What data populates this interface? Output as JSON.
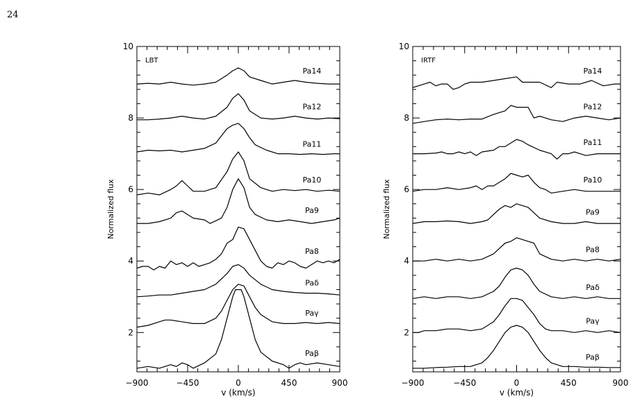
{
  "page": {
    "number": "24"
  },
  "chart_data": [
    {
      "type": "line",
      "panel_label": "LBT",
      "xlabel": "v (km/s)",
      "ylabel": "Normalized flux",
      "xlim": [
        -900,
        900
      ],
      "ylim": [
        0.9,
        10
      ],
      "xticks": [
        -900,
        -450,
        0,
        450,
        900
      ],
      "xtick_labels": [
        "−900",
        "−450",
        "0",
        "450",
        "900"
      ],
      "yticks": [
        2,
        4,
        6,
        8,
        10
      ],
      "ytick_labels": [
        "2",
        "4",
        "6",
        "8",
        "10"
      ],
      "grid": false,
      "series": [
        {
          "name": "Pa14",
          "x": [
            -900,
            -800,
            -700,
            -600,
            -500,
            -400,
            -300,
            -200,
            -100,
            -50,
            0,
            50,
            100,
            200,
            300,
            400,
            500,
            600,
            700,
            800,
            900
          ],
          "y": [
            8.95,
            8.97,
            8.95,
            9.0,
            8.95,
            8.92,
            8.95,
            9.0,
            9.2,
            9.32,
            9.4,
            9.32,
            9.15,
            9.05,
            8.95,
            9.0,
            9.05,
            9.0,
            8.97,
            8.95,
            8.95
          ]
        },
        {
          "name": "Pa12",
          "x": [
            -900,
            -800,
            -700,
            -600,
            -500,
            -400,
            -300,
            -200,
            -100,
            -50,
            0,
            50,
            100,
            200,
            300,
            400,
            500,
            600,
            700,
            800,
            900
          ],
          "y": [
            7.95,
            7.95,
            7.97,
            8.0,
            8.05,
            8.0,
            7.97,
            8.05,
            8.3,
            8.55,
            8.68,
            8.5,
            8.2,
            8.0,
            7.97,
            8.0,
            8.05,
            8.0,
            7.97,
            8.0,
            7.98
          ]
        },
        {
          "name": "Pa11",
          "x": [
            -900,
            -800,
            -700,
            -600,
            -500,
            -400,
            -300,
            -200,
            -150,
            -100,
            -50,
            0,
            50,
            100,
            150,
            250,
            350,
            450,
            550,
            650,
            750,
            850,
            900
          ],
          "y": [
            7.05,
            7.1,
            7.08,
            7.1,
            7.05,
            7.1,
            7.15,
            7.3,
            7.5,
            7.7,
            7.8,
            7.85,
            7.7,
            7.45,
            7.25,
            7.1,
            7.0,
            7.0,
            6.98,
            7.0,
            6.98,
            7.0,
            7.0
          ]
        },
        {
          "name": "Pa10",
          "x": [
            -900,
            -800,
            -700,
            -600,
            -550,
            -500,
            -450,
            -400,
            -300,
            -200,
            -100,
            -50,
            0,
            50,
            100,
            200,
            300,
            400,
            500,
            600,
            700,
            800,
            900
          ],
          "y": [
            5.85,
            5.9,
            5.85,
            6.0,
            6.1,
            6.25,
            6.1,
            5.95,
            5.95,
            6.05,
            6.5,
            6.85,
            7.05,
            6.8,
            6.3,
            6.05,
            5.95,
            6.0,
            5.97,
            6.0,
            5.95,
            5.98,
            5.95
          ]
        },
        {
          "name": "Pa9",
          "x": [
            -900,
            -800,
            -700,
            -600,
            -550,
            -500,
            -450,
            -400,
            -300,
            -250,
            -150,
            -100,
            -50,
            0,
            50,
            100,
            150,
            250,
            350,
            450,
            550,
            650,
            750,
            850,
            900
          ],
          "y": [
            5.05,
            5.05,
            5.1,
            5.2,
            5.35,
            5.4,
            5.3,
            5.2,
            5.15,
            5.05,
            5.2,
            5.5,
            6.0,
            6.3,
            6.05,
            5.5,
            5.3,
            5.15,
            5.1,
            5.15,
            5.1,
            5.05,
            5.1,
            5.15,
            5.2
          ]
        },
        {
          "name": "Pa8",
          "x": [
            -900,
            -850,
            -800,
            -750,
            -700,
            -650,
            -600,
            -550,
            -500,
            -450,
            -400,
            -350,
            -300,
            -250,
            -200,
            -150,
            -100,
            -50,
            0,
            50,
            100,
            150,
            200,
            250,
            300,
            350,
            400,
            450,
            500,
            550,
            600,
            650,
            700,
            750,
            800,
            850,
            900
          ],
          "y": [
            3.8,
            3.85,
            3.85,
            3.75,
            3.85,
            3.8,
            4.0,
            3.9,
            3.95,
            3.85,
            3.95,
            3.85,
            3.9,
            3.95,
            4.05,
            4.2,
            4.5,
            4.6,
            4.95,
            4.9,
            4.6,
            4.3,
            4.0,
            3.85,
            3.8,
            3.95,
            3.9,
            4.0,
            3.95,
            3.85,
            3.8,
            3.9,
            4.0,
            3.95,
            4.0,
            3.95,
            4.05
          ]
        },
        {
          "name": "Paδ",
          "x": [
            -900,
            -800,
            -700,
            -600,
            -500,
            -400,
            -300,
            -200,
            -100,
            -50,
            0,
            50,
            100,
            200,
            300,
            400,
            500,
            600,
            700,
            800,
            900
          ],
          "y": [
            3.0,
            3.02,
            3.05,
            3.05,
            3.1,
            3.15,
            3.2,
            3.35,
            3.65,
            3.85,
            3.9,
            3.8,
            3.6,
            3.35,
            3.2,
            3.15,
            3.12,
            3.1,
            3.1,
            3.08,
            3.05
          ]
        },
        {
          "name": "Paγ",
          "x": [
            -900,
            -800,
            -700,
            -650,
            -600,
            -500,
            -400,
            -300,
            -200,
            -150,
            -100,
            -50,
            0,
            50,
            100,
            150,
            200,
            300,
            400,
            500,
            600,
            700,
            800,
            900
          ],
          "y": [
            2.15,
            2.2,
            2.3,
            2.35,
            2.35,
            2.3,
            2.25,
            2.25,
            2.4,
            2.6,
            2.9,
            3.2,
            3.35,
            3.3,
            3.0,
            2.7,
            2.5,
            2.3,
            2.25,
            2.25,
            2.28,
            2.25,
            2.28,
            2.25
          ]
        },
        {
          "name": "Paβ",
          "x": [
            -900,
            -800,
            -700,
            -600,
            -550,
            -500,
            -450,
            -400,
            -300,
            -200,
            -150,
            -100,
            -50,
            -25,
            25,
            50,
            100,
            150,
            200,
            300,
            400,
            450,
            500,
            550,
            600,
            700,
            800,
            900
          ],
          "y": [
            1.0,
            1.05,
            1.0,
            1.1,
            1.05,
            1.15,
            1.1,
            1.0,
            1.15,
            1.4,
            1.8,
            2.4,
            3.0,
            3.2,
            3.2,
            3.0,
            2.4,
            1.8,
            1.45,
            1.2,
            1.1,
            1.0,
            1.1,
            1.15,
            1.1,
            1.15,
            1.1,
            1.05
          ]
        }
      ]
    },
    {
      "type": "line",
      "panel_label": "IRTF",
      "xlabel": "v (km/s)",
      "ylabel": "Normalized flux",
      "xlim": [
        -900,
        900
      ],
      "ylim": [
        0.9,
        10
      ],
      "xticks": [
        -900,
        -450,
        0,
        450,
        900
      ],
      "xtick_labels": [
        "−900",
        "−450",
        "0",
        "450",
        "900"
      ],
      "yticks": [
        2,
        4,
        6,
        8,
        10
      ],
      "ytick_labels": [
        "2",
        "4",
        "6",
        "8",
        "10"
      ],
      "grid": false,
      "series": [
        {
          "name": "Pa14",
          "x": [
            -900,
            -800,
            -750,
            -700,
            -650,
            -600,
            -550,
            -500,
            -450,
            -400,
            -300,
            -200,
            -100,
            0,
            50,
            100,
            200,
            300,
            350,
            450,
            550,
            650,
            750,
            850,
            900
          ],
          "y": [
            8.85,
            8.95,
            9.0,
            8.9,
            8.95,
            8.95,
            8.8,
            8.85,
            8.95,
            9.0,
            9.0,
            9.05,
            9.1,
            9.15,
            9.0,
            9.0,
            9.0,
            8.85,
            9.0,
            8.95,
            8.95,
            9.05,
            8.9,
            8.95,
            8.95
          ]
        },
        {
          "name": "Pa12",
          "x": [
            -900,
            -800,
            -700,
            -600,
            -500,
            -400,
            -300,
            -200,
            -150,
            -100,
            -50,
            0,
            50,
            100,
            150,
            200,
            250,
            300,
            400,
            500,
            600,
            700,
            800,
            900
          ],
          "y": [
            7.85,
            7.9,
            7.95,
            7.97,
            7.95,
            7.97,
            7.97,
            8.1,
            8.15,
            8.2,
            8.35,
            8.3,
            8.3,
            8.3,
            8.0,
            8.05,
            8.0,
            7.95,
            7.9,
            8.0,
            8.05,
            8.0,
            7.95,
            8.0
          ]
        },
        {
          "name": "Pa11",
          "x": [
            -900,
            -800,
            -700,
            -650,
            -600,
            -550,
            -500,
            -450,
            -400,
            -350,
            -300,
            -200,
            -150,
            -100,
            0,
            50,
            100,
            200,
            300,
            350,
            400,
            450,
            500,
            550,
            600,
            700,
            800,
            900
          ],
          "y": [
            7.0,
            7.0,
            7.02,
            7.05,
            7.0,
            7.0,
            7.05,
            7.0,
            7.05,
            6.95,
            7.05,
            7.1,
            7.2,
            7.2,
            7.4,
            7.35,
            7.25,
            7.1,
            7.0,
            6.85,
            7.0,
            7.0,
            7.05,
            7.0,
            6.95,
            7.0,
            7.0,
            7.0
          ]
        },
        {
          "name": "Pa10",
          "x": [
            -900,
            -800,
            -700,
            -600,
            -500,
            -400,
            -350,
            -300,
            -250,
            -200,
            -150,
            -100,
            -50,
            0,
            50,
            100,
            150,
            200,
            250,
            300,
            400,
            500,
            600,
            700,
            800,
            900
          ],
          "y": [
            5.95,
            6.0,
            6.0,
            6.05,
            6.0,
            6.05,
            6.1,
            6.0,
            6.1,
            6.1,
            6.2,
            6.3,
            6.45,
            6.4,
            6.35,
            6.4,
            6.2,
            6.05,
            6.0,
            5.9,
            5.95,
            6.0,
            5.95,
            5.95,
            5.95,
            5.95
          ]
        },
        {
          "name": "Pa9",
          "x": [
            -900,
            -800,
            -700,
            -600,
            -500,
            -400,
            -300,
            -250,
            -200,
            -150,
            -100,
            -50,
            0,
            50,
            100,
            150,
            200,
            300,
            400,
            500,
            600,
            700,
            800,
            900
          ],
          "y": [
            5.05,
            5.1,
            5.1,
            5.12,
            5.1,
            5.05,
            5.1,
            5.15,
            5.3,
            5.45,
            5.55,
            5.5,
            5.6,
            5.55,
            5.5,
            5.35,
            5.2,
            5.1,
            5.05,
            5.05,
            5.1,
            5.05,
            5.05,
            5.05
          ]
        },
        {
          "name": "Pa8",
          "x": [
            -900,
            -800,
            -700,
            -600,
            -500,
            -400,
            -300,
            -200,
            -150,
            -100,
            -50,
            0,
            50,
            100,
            150,
            200,
            300,
            400,
            500,
            600,
            700,
            800,
            900
          ],
          "y": [
            4.0,
            4.0,
            4.05,
            4.0,
            4.05,
            4.0,
            4.05,
            4.2,
            4.35,
            4.5,
            4.55,
            4.65,
            4.6,
            4.55,
            4.5,
            4.2,
            4.05,
            4.0,
            4.05,
            4.0,
            4.05,
            4.0,
            4.05
          ]
        },
        {
          "name": "Paδ",
          "x": [
            -900,
            -800,
            -700,
            -600,
            -500,
            -400,
            -300,
            -200,
            -150,
            -100,
            -50,
            0,
            50,
            100,
            150,
            200,
            300,
            400,
            500,
            600,
            700,
            800,
            900
          ],
          "y": [
            2.95,
            3.0,
            2.95,
            3.0,
            3.0,
            2.95,
            3.0,
            3.15,
            3.3,
            3.55,
            3.75,
            3.8,
            3.75,
            3.6,
            3.35,
            3.15,
            3.0,
            2.95,
            3.0,
            2.95,
            3.0,
            2.95,
            2.95
          ]
        },
        {
          "name": "Paγ",
          "x": [
            -900,
            -850,
            -800,
            -700,
            -600,
            -500,
            -400,
            -300,
            -200,
            -150,
            -100,
            -50,
            0,
            50,
            100,
            150,
            200,
            250,
            300,
            400,
            500,
            600,
            700,
            800,
            900
          ],
          "y": [
            2.0,
            2.0,
            2.05,
            2.05,
            2.1,
            2.1,
            2.05,
            2.1,
            2.3,
            2.5,
            2.75,
            2.95,
            2.95,
            2.9,
            2.7,
            2.5,
            2.25,
            2.1,
            2.05,
            2.05,
            2.0,
            2.05,
            2.0,
            2.05,
            2.0
          ]
        },
        {
          "name": "Paβ",
          "x": [
            -900,
            -800,
            -700,
            -600,
            -500,
            -400,
            -300,
            -250,
            -200,
            -150,
            -100,
            -50,
            0,
            50,
            100,
            150,
            200,
            250,
            300,
            400,
            500,
            600,
            700,
            800,
            900
          ],
          "y": [
            1.0,
            1.0,
            1.02,
            1.03,
            1.05,
            1.05,
            1.15,
            1.3,
            1.5,
            1.75,
            2.0,
            2.15,
            2.2,
            2.15,
            2.0,
            1.75,
            1.5,
            1.3,
            1.15,
            1.05,
            1.05,
            1.03,
            1.03,
            1.02,
            1.02
          ]
        }
      ]
    }
  ]
}
